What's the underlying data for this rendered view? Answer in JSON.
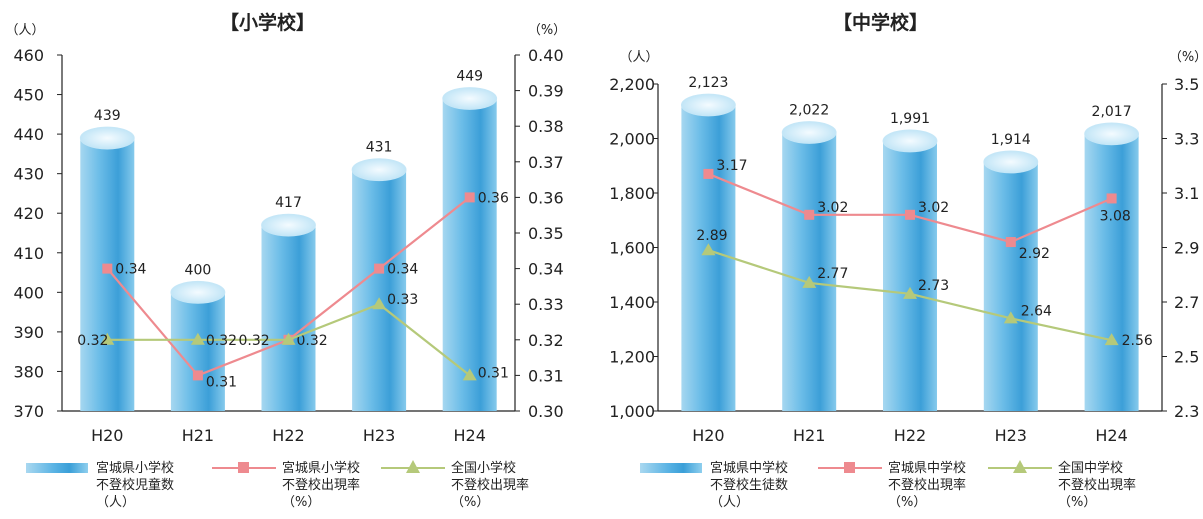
{
  "colors": {
    "bar": "#5ab3e4",
    "bar_top": "#d8f0fb",
    "prefecture_rate": "#ee8a8f",
    "national_rate": "#b5c97a",
    "axis": "#222222"
  },
  "chart_data": [
    {
      "type": "bar",
      "title": "【小学校】",
      "ylabel_left": "（人）",
      "ylabel_right": "（%）",
      "categories": [
        "H20",
        "H21",
        "H22",
        "H23",
        "H24"
      ],
      "ylim_left": [
        370,
        460
      ],
      "yticks_left": [
        "370",
        "380",
        "390",
        "400",
        "410",
        "420",
        "430",
        "440",
        "450",
        "460"
      ],
      "ylim_right": [
        0.3,
        0.4
      ],
      "yticks_right": [
        "0.30",
        "0.31",
        "0.32",
        "0.33",
        "0.34",
        "0.35",
        "0.36",
        "0.37",
        "0.38",
        "0.39",
        "0.40"
      ],
      "bars": {
        "name": "宮城県小学校\n不登校児童数\n（人）",
        "values": [
          439,
          400,
          417,
          431,
          449
        ],
        "labels": [
          "439",
          "400",
          "417",
          "431",
          "449"
        ]
      },
      "series": [
        {
          "name": "宮城県小学校\n不登校出現率\n（%）",
          "marker": "square",
          "values": [
            0.34,
            0.31,
            0.32,
            0.34,
            0.36
          ],
          "labels": [
            "0.34",
            "0.31",
            "0.32",
            "0.34",
            "0.36"
          ]
        },
        {
          "name": "全国小学校\n不登校出現率\n（%）",
          "marker": "triangle",
          "values": [
            0.32,
            0.32,
            0.32,
            0.33,
            0.31
          ],
          "labels": [
            "0.32",
            "0.32",
            "0.32",
            "0.33",
            "0.31"
          ]
        }
      ]
    },
    {
      "type": "bar",
      "title": "【中学校】",
      "ylabel_left": "（人）",
      "ylabel_right": "（%）",
      "categories": [
        "H20",
        "H21",
        "H22",
        "H23",
        "H24"
      ],
      "ylim_left": [
        1000,
        2200
      ],
      "yticks_left": [
        "1,000",
        "1,200",
        "1,400",
        "1,600",
        "1,800",
        "2,000",
        "2,200"
      ],
      "ylim_right": [
        2.3,
        3.5
      ],
      "yticks_right": [
        "2.3",
        "2.5",
        "2.7",
        "2.9",
        "3.1",
        "3.3",
        "3.5"
      ],
      "bars": {
        "name": "宮城県中学校\n不登校生徒数\n（人）",
        "values": [
          2123,
          2022,
          1991,
          1914,
          2017
        ],
        "labels": [
          "2,123",
          "2,022",
          "1,991",
          "1,914",
          "2,017"
        ]
      },
      "series": [
        {
          "name": "宮城県中学校\n不登校出現率\n（%）",
          "marker": "square",
          "values": [
            3.17,
            3.02,
            3.02,
            2.92,
            3.08
          ],
          "labels": [
            "3.17",
            "3.02",
            "3.02",
            "2.92",
            "3.08"
          ]
        },
        {
          "name": "全国中学校\n不登校出現率\n（%）",
          "marker": "triangle",
          "values": [
            2.89,
            2.77,
            2.73,
            2.64,
            2.56
          ],
          "labels": [
            "2.89",
            "2.77",
            "2.73",
            "2.64",
            "2.56"
          ]
        }
      ]
    }
  ]
}
